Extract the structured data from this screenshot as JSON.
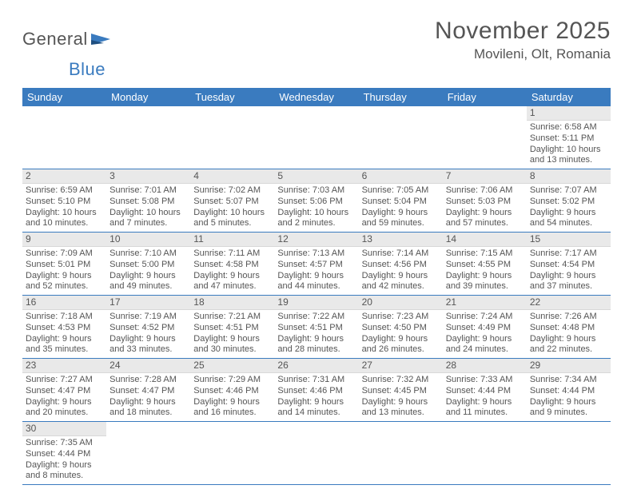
{
  "header": {
    "logo_general": "General",
    "logo_blue": "Blue",
    "month_title": "November 2025",
    "location": "Movileni, Olt, Romania"
  },
  "colors": {
    "accent": "#3a7bbf",
    "text": "#555555",
    "daybar": "#e9e9e9",
    "background": "#ffffff"
  },
  "calendar": {
    "type": "table",
    "weekdays": [
      "Sunday",
      "Monday",
      "Tuesday",
      "Wednesday",
      "Thursday",
      "Friday",
      "Saturday"
    ],
    "first_weekday_index": 6,
    "days": [
      {
        "n": "1",
        "sunrise": "Sunrise: 6:58 AM",
        "sunset": "Sunset: 5:11 PM",
        "day1": "Daylight: 10 hours",
        "day2": "and 13 minutes."
      },
      {
        "n": "2",
        "sunrise": "Sunrise: 6:59 AM",
        "sunset": "Sunset: 5:10 PM",
        "day1": "Daylight: 10 hours",
        "day2": "and 10 minutes."
      },
      {
        "n": "3",
        "sunrise": "Sunrise: 7:01 AM",
        "sunset": "Sunset: 5:08 PM",
        "day1": "Daylight: 10 hours",
        "day2": "and 7 minutes."
      },
      {
        "n": "4",
        "sunrise": "Sunrise: 7:02 AM",
        "sunset": "Sunset: 5:07 PM",
        "day1": "Daylight: 10 hours",
        "day2": "and 5 minutes."
      },
      {
        "n": "5",
        "sunrise": "Sunrise: 7:03 AM",
        "sunset": "Sunset: 5:06 PM",
        "day1": "Daylight: 10 hours",
        "day2": "and 2 minutes."
      },
      {
        "n": "6",
        "sunrise": "Sunrise: 7:05 AM",
        "sunset": "Sunset: 5:04 PM",
        "day1": "Daylight: 9 hours",
        "day2": "and 59 minutes."
      },
      {
        "n": "7",
        "sunrise": "Sunrise: 7:06 AM",
        "sunset": "Sunset: 5:03 PM",
        "day1": "Daylight: 9 hours",
        "day2": "and 57 minutes."
      },
      {
        "n": "8",
        "sunrise": "Sunrise: 7:07 AM",
        "sunset": "Sunset: 5:02 PM",
        "day1": "Daylight: 9 hours",
        "day2": "and 54 minutes."
      },
      {
        "n": "9",
        "sunrise": "Sunrise: 7:09 AM",
        "sunset": "Sunset: 5:01 PM",
        "day1": "Daylight: 9 hours",
        "day2": "and 52 minutes."
      },
      {
        "n": "10",
        "sunrise": "Sunrise: 7:10 AM",
        "sunset": "Sunset: 5:00 PM",
        "day1": "Daylight: 9 hours",
        "day2": "and 49 minutes."
      },
      {
        "n": "11",
        "sunrise": "Sunrise: 7:11 AM",
        "sunset": "Sunset: 4:58 PM",
        "day1": "Daylight: 9 hours",
        "day2": "and 47 minutes."
      },
      {
        "n": "12",
        "sunrise": "Sunrise: 7:13 AM",
        "sunset": "Sunset: 4:57 PM",
        "day1": "Daylight: 9 hours",
        "day2": "and 44 minutes."
      },
      {
        "n": "13",
        "sunrise": "Sunrise: 7:14 AM",
        "sunset": "Sunset: 4:56 PM",
        "day1": "Daylight: 9 hours",
        "day2": "and 42 minutes."
      },
      {
        "n": "14",
        "sunrise": "Sunrise: 7:15 AM",
        "sunset": "Sunset: 4:55 PM",
        "day1": "Daylight: 9 hours",
        "day2": "and 39 minutes."
      },
      {
        "n": "15",
        "sunrise": "Sunrise: 7:17 AM",
        "sunset": "Sunset: 4:54 PM",
        "day1": "Daylight: 9 hours",
        "day2": "and 37 minutes."
      },
      {
        "n": "16",
        "sunrise": "Sunrise: 7:18 AM",
        "sunset": "Sunset: 4:53 PM",
        "day1": "Daylight: 9 hours",
        "day2": "and 35 minutes."
      },
      {
        "n": "17",
        "sunrise": "Sunrise: 7:19 AM",
        "sunset": "Sunset: 4:52 PM",
        "day1": "Daylight: 9 hours",
        "day2": "and 33 minutes."
      },
      {
        "n": "18",
        "sunrise": "Sunrise: 7:21 AM",
        "sunset": "Sunset: 4:51 PM",
        "day1": "Daylight: 9 hours",
        "day2": "and 30 minutes."
      },
      {
        "n": "19",
        "sunrise": "Sunrise: 7:22 AM",
        "sunset": "Sunset: 4:51 PM",
        "day1": "Daylight: 9 hours",
        "day2": "and 28 minutes."
      },
      {
        "n": "20",
        "sunrise": "Sunrise: 7:23 AM",
        "sunset": "Sunset: 4:50 PM",
        "day1": "Daylight: 9 hours",
        "day2": "and 26 minutes."
      },
      {
        "n": "21",
        "sunrise": "Sunrise: 7:24 AM",
        "sunset": "Sunset: 4:49 PM",
        "day1": "Daylight: 9 hours",
        "day2": "and 24 minutes."
      },
      {
        "n": "22",
        "sunrise": "Sunrise: 7:26 AM",
        "sunset": "Sunset: 4:48 PM",
        "day1": "Daylight: 9 hours",
        "day2": "and 22 minutes."
      },
      {
        "n": "23",
        "sunrise": "Sunrise: 7:27 AM",
        "sunset": "Sunset: 4:47 PM",
        "day1": "Daylight: 9 hours",
        "day2": "and 20 minutes."
      },
      {
        "n": "24",
        "sunrise": "Sunrise: 7:28 AM",
        "sunset": "Sunset: 4:47 PM",
        "day1": "Daylight: 9 hours",
        "day2": "and 18 minutes."
      },
      {
        "n": "25",
        "sunrise": "Sunrise: 7:29 AM",
        "sunset": "Sunset: 4:46 PM",
        "day1": "Daylight: 9 hours",
        "day2": "and 16 minutes."
      },
      {
        "n": "26",
        "sunrise": "Sunrise: 7:31 AM",
        "sunset": "Sunset: 4:46 PM",
        "day1": "Daylight: 9 hours",
        "day2": "and 14 minutes."
      },
      {
        "n": "27",
        "sunrise": "Sunrise: 7:32 AM",
        "sunset": "Sunset: 4:45 PM",
        "day1": "Daylight: 9 hours",
        "day2": "and 13 minutes."
      },
      {
        "n": "28",
        "sunrise": "Sunrise: 7:33 AM",
        "sunset": "Sunset: 4:44 PM",
        "day1": "Daylight: 9 hours",
        "day2": "and 11 minutes."
      },
      {
        "n": "29",
        "sunrise": "Sunrise: 7:34 AM",
        "sunset": "Sunset: 4:44 PM",
        "day1": "Daylight: 9 hours",
        "day2": "and 9 minutes."
      },
      {
        "n": "30",
        "sunrise": "Sunrise: 7:35 AM",
        "sunset": "Sunset: 4:44 PM",
        "day1": "Daylight: 9 hours",
        "day2": "and 8 minutes."
      }
    ]
  }
}
